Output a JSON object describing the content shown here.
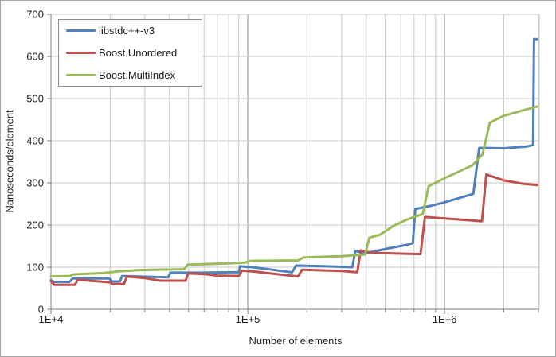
{
  "chart_data": {
    "type": "line",
    "title": "",
    "xlabel": "Number of elements",
    "ylabel": "Nanoseconds/element",
    "x_scale": "log10",
    "xlim": [
      10000,
      3030000
    ],
    "ylim": [
      0,
      700
    ],
    "grid": true,
    "legend_position": "top-left",
    "x_ticks": [
      {
        "label": "1E+4",
        "value": 10000
      },
      {
        "label": "1E+5",
        "value": 100000
      },
      {
        "label": "1E+6",
        "value": 1000000
      }
    ],
    "y_ticks": [
      0,
      100,
      200,
      300,
      400,
      500,
      600,
      700
    ],
    "palette": {
      "grid_minor": "#C9C9C9",
      "grid_major": "#8C8C8C",
      "axis": "#7F7F7F",
      "text": "#1F1F1F"
    },
    "series": [
      {
        "name": "libstdc++-v3",
        "color": "#4F81BD",
        "points": [
          [
            10000,
            69
          ],
          [
            10400,
            65
          ],
          [
            12400,
            65
          ],
          [
            12900,
            73
          ],
          [
            19800,
            73
          ],
          [
            20300,
            66
          ],
          [
            22400,
            66
          ],
          [
            23000,
            79
          ],
          [
            32500,
            77
          ],
          [
            39300,
            76
          ],
          [
            40500,
            87
          ],
          [
            60000,
            87
          ],
          [
            80000,
            88
          ],
          [
            90000,
            88
          ],
          [
            91500,
            102
          ],
          [
            110000,
            99
          ],
          [
            160000,
            89
          ],
          [
            168000,
            88
          ],
          [
            176000,
            104
          ],
          [
            250000,
            102
          ],
          [
            340000,
            100
          ],
          [
            352000,
            138
          ],
          [
            405000,
            134
          ],
          [
            550000,
            147
          ],
          [
            645000,
            153
          ],
          [
            690000,
            157
          ],
          [
            710000,
            238
          ],
          [
            860000,
            246
          ],
          [
            1000000,
            254
          ],
          [
            1400000,
            274
          ],
          [
            1500000,
            383
          ],
          [
            2000000,
            382
          ],
          [
            2600000,
            386
          ],
          [
            2820000,
            390
          ],
          [
            2850000,
            641
          ],
          [
            2950000,
            641
          ]
        ]
      },
      {
        "name": "Boost.Unordered",
        "color": "#C0504D",
        "points": [
          [
            10000,
            67
          ],
          [
            10400,
            58
          ],
          [
            13200,
            58
          ],
          [
            13700,
            70
          ],
          [
            20000,
            64
          ],
          [
            20400,
            60
          ],
          [
            23500,
            60
          ],
          [
            24300,
            78
          ],
          [
            30000,
            74
          ],
          [
            36000,
            68
          ],
          [
            48300,
            68
          ],
          [
            49800,
            85
          ],
          [
            62000,
            83
          ],
          [
            70000,
            80
          ],
          [
            90000,
            79
          ],
          [
            93500,
            92
          ],
          [
            110000,
            89
          ],
          [
            180000,
            78
          ],
          [
            189000,
            94
          ],
          [
            300000,
            91
          ],
          [
            360000,
            88
          ],
          [
            375000,
            140
          ],
          [
            424000,
            134
          ],
          [
            600000,
            132
          ],
          [
            755000,
            131
          ],
          [
            795000,
            219
          ],
          [
            1200000,
            213
          ],
          [
            1550000,
            209
          ],
          [
            1630000,
            320
          ],
          [
            2000000,
            306
          ],
          [
            2500000,
            298
          ],
          [
            2950000,
            295
          ]
        ]
      },
      {
        "name": "Boost.MultiIndex",
        "color": "#9BBB59",
        "points": [
          [
            10000,
            78
          ],
          [
            12500,
            79
          ],
          [
            13000,
            83
          ],
          [
            18500,
            86
          ],
          [
            22000,
            90
          ],
          [
            27500,
            93
          ],
          [
            32500,
            94
          ],
          [
            47500,
            95
          ],
          [
            49500,
            106
          ],
          [
            80000,
            109
          ],
          [
            97000,
            111
          ],
          [
            103000,
            115
          ],
          [
            180000,
            116
          ],
          [
            192000,
            123
          ],
          [
            300000,
            126
          ],
          [
            395000,
            130
          ],
          [
            415000,
            170
          ],
          [
            470000,
            177
          ],
          [
            550000,
            198
          ],
          [
            645000,
            213
          ],
          [
            775000,
            226
          ],
          [
            830000,
            292
          ],
          [
            1000000,
            311
          ],
          [
            1390000,
            342
          ],
          [
            1560000,
            368
          ],
          [
            1700000,
            443
          ],
          [
            2000000,
            459
          ],
          [
            2500000,
            472
          ],
          [
            2950000,
            481
          ]
        ]
      }
    ]
  }
}
